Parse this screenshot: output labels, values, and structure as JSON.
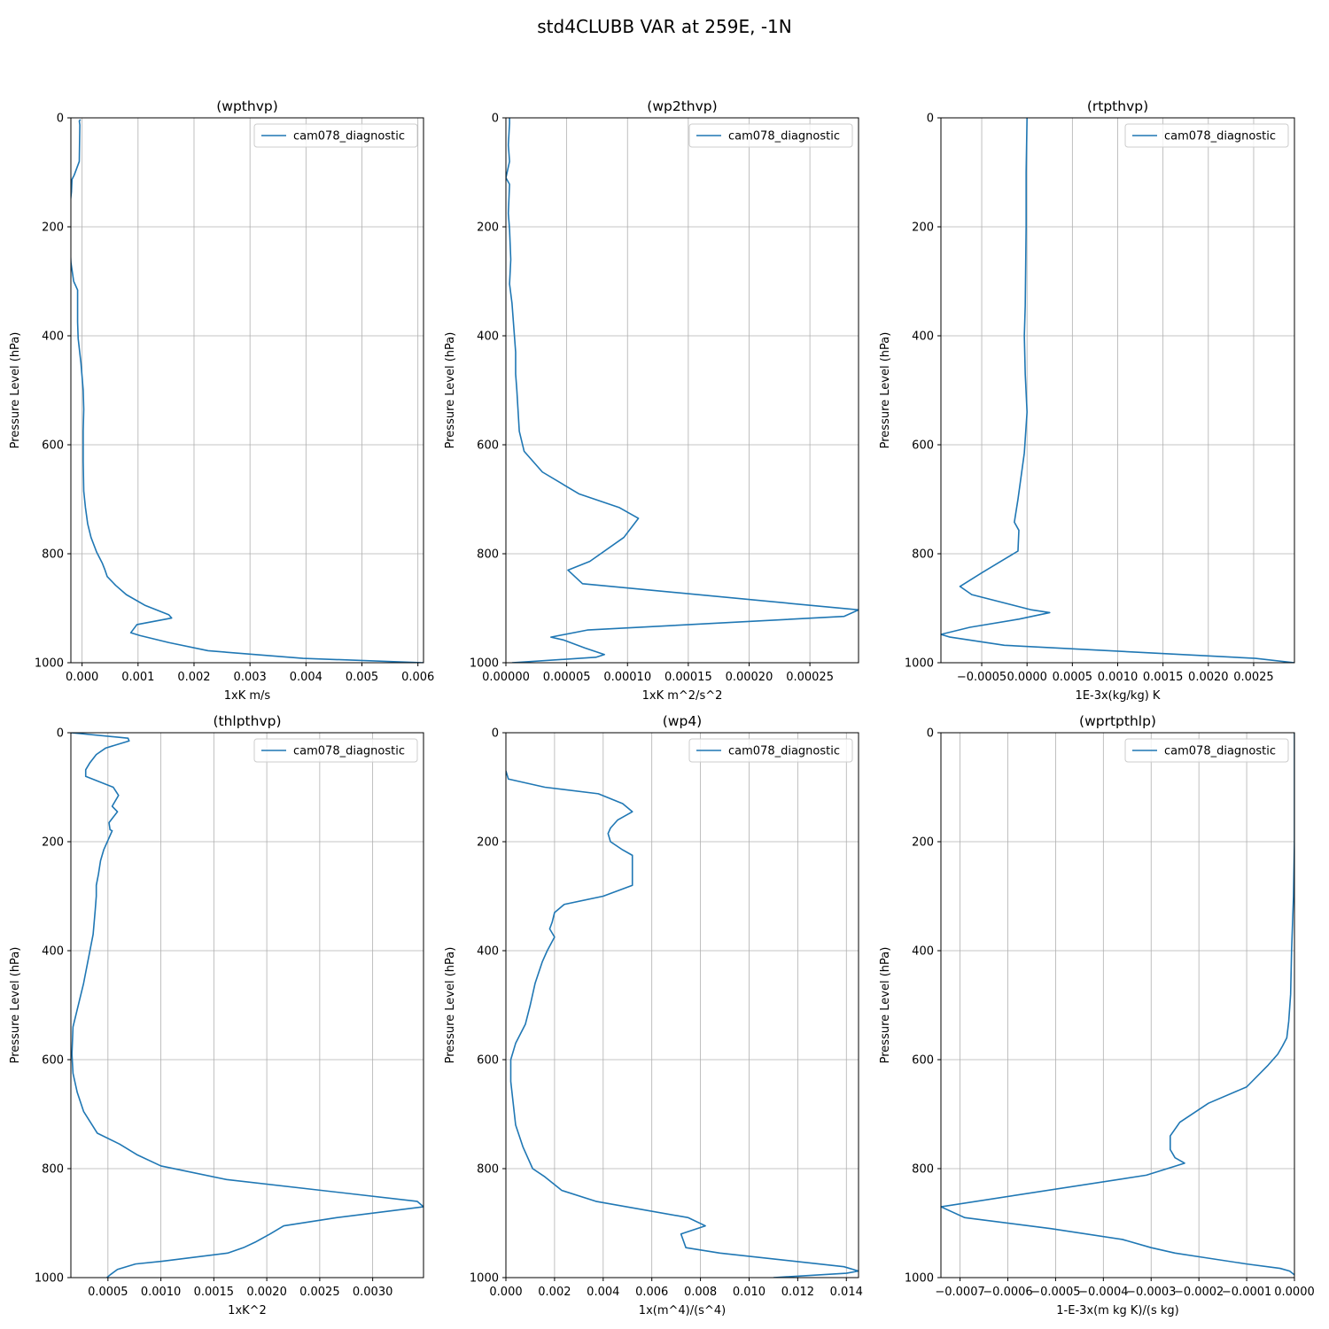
{
  "figure_title": "std4CLUBB VAR at 259E, -1N",
  "colors": {
    "series": "#1f77b4",
    "grid": "#b0b0b0",
    "axes": "#000000",
    "legend_border": "#cccccc"
  },
  "chart_data": [
    {
      "type": "line",
      "title": "(wpthvp)",
      "xlabel": "1xK m/s",
      "ylabel": "Pressure Level (hPa)",
      "xlim": [
        -0.0002,
        0.0061
      ],
      "ylim": [
        1000,
        0
      ],
      "xticks": [
        0.0,
        0.001,
        0.002,
        0.003,
        0.004,
        0.005,
        0.006
      ],
      "xtick_labels": [
        "0.000",
        "0.001",
        "0.002",
        "0.003",
        "0.004",
        "0.005",
        "0.006"
      ],
      "yticks": [
        0,
        200,
        400,
        600,
        800,
        1000
      ],
      "ytick_labels": [
        "0",
        "200",
        "400",
        "600",
        "800",
        "1000"
      ],
      "grid": true,
      "legend_position": "top-right",
      "series": [
        {
          "name": "cam078_diagnostic",
          "x": [
            -3e-05,
            -5e-05,
            -4e-05,
            -5e-05,
            -0.00014,
            -0.00018,
            -0.00019,
            -0.00025,
            -0.00023,
            -0.0002,
            -0.00015,
            -8e-05,
            -8e-05,
            -7e-05,
            -2e-05,
            2e-05,
            3e-05,
            2e-05,
            2e-05,
            3e-05,
            6e-05,
            0.0001,
            0.00016,
            0.00026,
            0.00036,
            0.00041,
            0.00045,
            0.0006,
            0.00079,
            0.00113,
            0.00155,
            0.0016,
            0.00098,
            0.00087,
            0.00103,
            0.00155,
            0.00225,
            0.00395,
            0.0061
          ],
          "y": [
            3,
            6,
            13,
            80,
            105,
            113,
            136,
            190,
            205,
            265,
            300,
            316,
            375,
            405,
            450,
            500,
            535,
            575,
            630,
            685,
            715,
            745,
            770,
            797,
            817,
            830,
            842,
            858,
            875,
            895,
            912,
            918,
            930,
            945,
            950,
            963,
            978,
            992,
            1000
          ]
        }
      ]
    },
    {
      "type": "line",
      "title": "(wp2thvp)",
      "xlabel": "1xK m^2/s^2",
      "ylabel": "Pressure Level (hPa)",
      "xlim": [
        0,
        0.00029
      ],
      "ylim": [
        1000,
        0
      ],
      "xticks": [
        0.0,
        5e-05,
        0.0001,
        0.00015,
        0.0002,
        0.00025
      ],
      "xtick_labels": [
        "0.00000",
        "0.00005",
        "0.00010",
        "0.00015",
        "0.00020",
        "0.00025"
      ],
      "yticks": [
        0,
        200,
        400,
        600,
        800,
        1000
      ],
      "ytick_labels": [
        "0",
        "200",
        "400",
        "600",
        "800",
        "1000"
      ],
      "grid": true,
      "legend_position": "top-right",
      "series": [
        {
          "name": "cam078_diagnostic",
          "x": [
            3e-06,
            3e-06,
            2e-06,
            3e-06,
            0.0,
            3e-06,
            2e-06,
            3e-06,
            4e-06,
            3e-06,
            5e-06,
            8e-06,
            8e-06,
            9e-06,
            1.1e-05,
            1.5e-05,
            3e-05,
            6e-05,
            9.3e-05,
            0.000109,
            9.7e-05,
            6.9e-05,
            5.1e-05,
            6.3e-05,
            0.00029,
            0.000278,
            6.7e-05,
            3.7e-05,
            4.7e-05,
            6.5e-05,
            8.1e-05,
            7.4e-05,
            5e-06
          ],
          "y": [
            0,
            10,
            50,
            80,
            110,
            122,
            175,
            205,
            260,
            305,
            340,
            430,
            470,
            500,
            575,
            612,
            650,
            690,
            715,
            735,
            770,
            814,
            830,
            855,
            903,
            915,
            940,
            953,
            958,
            973,
            985,
            990,
            1000
          ]
        }
      ]
    },
    {
      "type": "line",
      "title": "(rtpthvp)",
      "xlabel": "1E-3x(kg/kg) K",
      "ylabel": "Pressure Level (hPa)",
      "xlim": [
        -0.00095,
        0.00295
      ],
      "ylim": [
        1000,
        0
      ],
      "xticks": [
        -0.0005,
        0.0,
        0.0005,
        0.001,
        0.0015,
        0.002,
        0.0025
      ],
      "xtick_labels": [
        "−0.0005",
        "0.0000",
        "0.0005",
        "0.0010",
        "0.0015",
        "0.0020",
        "0.0025"
      ],
      "yticks": [
        0,
        200,
        400,
        600,
        800,
        1000
      ],
      "ytick_labels": [
        "0",
        "200",
        "400",
        "600",
        "800",
        "1000"
      ],
      "grid": true,
      "legend_position": "top-right",
      "series": [
        {
          "name": "cam078_diagnostic",
          "x": [
            0.0,
            -1e-05,
            -1e-05,
            -2e-05,
            -3e-05,
            -2e-05,
            0.0,
            -3e-05,
            -0.0001,
            -0.00014,
            -9e-05,
            -0.0001,
            -0.0005,
            -0.00074,
            -0.00061,
            5e-05,
            0.00025,
            -9e-05,
            -0.00063,
            -0.00095,
            -0.00085,
            -0.00025,
            0.00252,
            0.00295
          ],
          "y": [
            0,
            100,
            200,
            345,
            400,
            470,
            540,
            615,
            700,
            742,
            757,
            795,
            835,
            860,
            875,
            903,
            908,
            920,
            935,
            948,
            953,
            968,
            992,
            1000
          ]
        }
      ]
    },
    {
      "type": "line",
      "title": "(thlpthvp)",
      "xlabel": "1xK^2",
      "ylabel": "Pressure Level (hPa)",
      "xlim": [
        0.00015,
        0.00348
      ],
      "ylim": [
        1000,
        0
      ],
      "xticks": [
        0.0005,
        0.001,
        0.0015,
        0.002,
        0.0025,
        0.003
      ],
      "xtick_labels": [
        "0.0005",
        "0.0010",
        "0.0015",
        "0.0020",
        "0.0025",
        "0.0030"
      ],
      "yticks": [
        0,
        200,
        400,
        600,
        800,
        1000
      ],
      "ytick_labels": [
        "0",
        "200",
        "400",
        "600",
        "800",
        "1000"
      ],
      "grid": true,
      "legend_position": "top-right",
      "series": [
        {
          "name": "cam078_diagnostic",
          "x": [
            0.00015,
            0.00069,
            0.0007,
            0.00048,
            0.00039,
            0.00033,
            0.00029,
            0.00029,
            0.00055,
            0.0006,
            0.00054,
            0.00059,
            0.00051,
            0.00052,
            0.00054,
            0.00046,
            0.00043,
            0.00041,
            0.00039,
            0.00039,
            0.00038,
            0.00036,
            0.00027,
            0.00017,
            0.00016,
            0.00017,
            0.00021,
            0.00027,
            0.0004,
            0.00061,
            0.00078,
            0.001,
            0.00162,
            0.00342,
            0.00348,
            0.00266,
            0.00216,
            0.00203,
            0.00189,
            0.00178,
            0.00163,
            0.00101,
            0.00076,
            0.00059,
            0.00052,
            0.00049
          ],
          "y": [
            0,
            10,
            15,
            28,
            40,
            55,
            68,
            80,
            100,
            115,
            135,
            145,
            165,
            178,
            180,
            215,
            235,
            260,
            280,
            300,
            325,
            370,
            460,
            540,
            590,
            625,
            660,
            695,
            735,
            755,
            775,
            795,
            820,
            860,
            870,
            890,
            905,
            920,
            935,
            945,
            955,
            970,
            975,
            985,
            995,
            1000
          ]
        }
      ]
    },
    {
      "type": "line",
      "title": "(wp4)",
      "xlabel": "1x(m^4)/(s^4)",
      "ylabel": "Pressure Level (hPa)",
      "xlim": [
        0,
        0.0145
      ],
      "ylim": [
        1000,
        0
      ],
      "xticks": [
        0.0,
        0.002,
        0.004,
        0.006,
        0.008,
        0.01,
        0.012,
        0.014
      ],
      "xtick_labels": [
        "0.000",
        "0.002",
        "0.004",
        "0.006",
        "0.008",
        "0.010",
        "0.012",
        "0.014"
      ],
      "yticks": [
        0,
        200,
        400,
        600,
        800,
        1000
      ],
      "ytick_labels": [
        "0",
        "200",
        "400",
        "600",
        "800",
        "1000"
      ],
      "grid": true,
      "legend_position": "top-right",
      "series": [
        {
          "name": "cam078_diagnostic",
          "x": [
            0.0,
            0.0001,
            0.0016,
            0.0038,
            0.0048,
            0.0052,
            0.0046,
            0.0043,
            0.0042,
            0.0043,
            0.0048,
            0.0052,
            0.0052,
            0.0052,
            0.004,
            0.0024,
            0.002,
            0.0019,
            0.0018,
            0.002,
            0.0017,
            0.0015,
            0.0012,
            0.001,
            0.0008,
            0.0004,
            0.0002,
            0.0002,
            0.0003,
            0.0004,
            0.0007,
            0.0011,
            0.0016,
            0.0023,
            0.0037,
            0.0075,
            0.0082,
            0.0072,
            0.0074,
            0.0088,
            0.0139,
            0.0145,
            0.014,
            0.011
          ],
          "y": [
            70,
            85,
            100,
            112,
            130,
            145,
            160,
            175,
            185,
            200,
            215,
            225,
            232,
            280,
            300,
            315,
            330,
            348,
            360,
            375,
            400,
            420,
            460,
            500,
            535,
            570,
            600,
            640,
            680,
            720,
            760,
            800,
            815,
            840,
            860,
            890,
            905,
            920,
            945,
            955,
            980,
            988,
            992,
            1000
          ]
        }
      ]
    },
    {
      "type": "line",
      "title": "(wprtpthlp)",
      "xlabel": "1-E-3x(m kg K)/(s kg)",
      "ylabel": "Pressure Level (hPa)",
      "xlim": [
        -0.00074,
        0.0
      ],
      "ylim": [
        1000,
        0
      ],
      "xticks": [
        -0.0007,
        -0.0006,
        -0.0005,
        -0.0004,
        -0.0003,
        -0.0002,
        -0.0001,
        0.0
      ],
      "xtick_labels": [
        "−0.0007",
        "−0.0006",
        "−0.0005",
        "−0.0004",
        "−0.0003",
        "−0.0002",
        "−0.0001",
        "0.0000"
      ],
      "yticks": [
        0,
        200,
        400,
        600,
        800,
        1000
      ],
      "ytick_labels": [
        "0",
        "200",
        "400",
        "600",
        "800",
        "1000"
      ],
      "grid": true,
      "legend_position": "top-right",
      "series": [
        {
          "name": "cam078_diagnostic",
          "x": [
            0.0,
            0.0,
            0.0,
            -2e-06,
            -6e-06,
            -8e-06,
            -1.2e-05,
            -1.6e-05,
            -2.5e-05,
            -3.5e-05,
            -5.5e-05,
            -0.0001,
            -0.00018,
            -0.00024,
            -0.00026,
            -0.00026,
            -0.00025,
            -0.00023,
            -0.00031,
            -0.00074,
            -0.00069,
            -0.00051,
            -0.00036,
            -0.0003,
            -0.00025,
            -0.00019,
            -0.0001,
            -3e-05,
            -1e-05,
            0.0
          ],
          "y": [
            0,
            100,
            200,
            300,
            400,
            480,
            530,
            560,
            575,
            590,
            610,
            650,
            680,
            715,
            740,
            765,
            780,
            790,
            812,
            870,
            890,
            910,
            930,
            945,
            955,
            963,
            975,
            983,
            988,
            995
          ]
        }
      ]
    }
  ]
}
